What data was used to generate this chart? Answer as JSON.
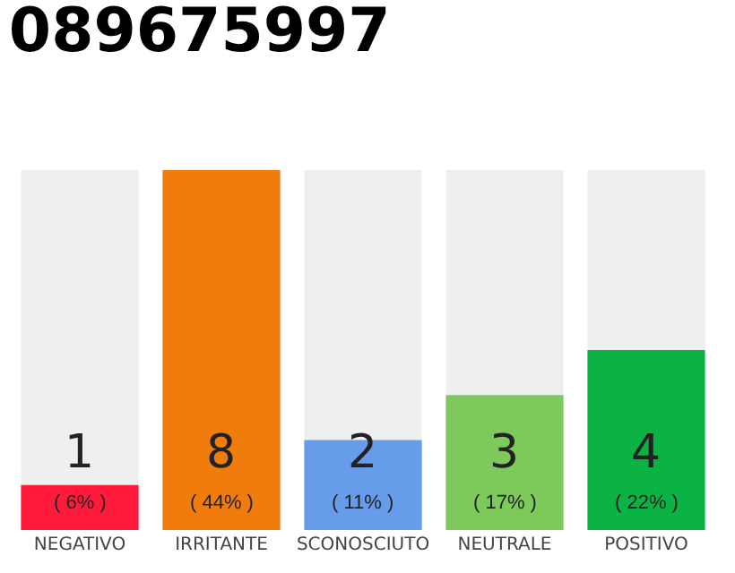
{
  "chart_data": {
    "type": "bar",
    "title": "089675997",
    "categories": [
      "NEGATIVO",
      "IRRITANTE",
      "SCONOSCIUTO",
      "NEUTRALE",
      "POSITIVO"
    ],
    "values": [
      1,
      8,
      2,
      3,
      4
    ],
    "colors": [
      "#ff1a3c",
      "#f07c0c",
      "#679cea",
      "#7ec95c",
      "#0bb345"
    ],
    "value_labels": [
      "1\n( 6% )",
      "8\n( 44% )",
      "2\n( 11% )",
      "3\n( 17% )",
      "4\n( 22% )"
    ],
    "legend": false,
    "grid": false
  }
}
